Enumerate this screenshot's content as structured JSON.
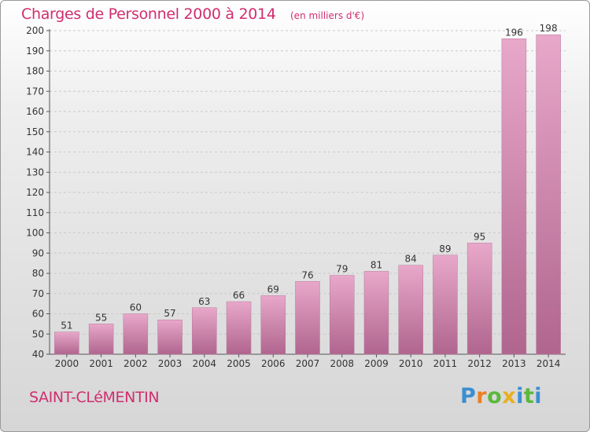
{
  "header": {
    "title": "Charges de Personnel 2000 à 2014",
    "subtitle": "(en milliers d'€)"
  },
  "footer": {
    "commune": "SAINT-CLéMENTIN",
    "logo_letters": [
      {
        "ch": "P",
        "color": "#3a8fd0"
      },
      {
        "ch": "r",
        "color": "#f07d1e"
      },
      {
        "ch": "o",
        "color": "#5bb83c"
      },
      {
        "ch": "x",
        "color": "#e8b020"
      },
      {
        "ch": "i",
        "color": "#3a8fd0"
      },
      {
        "ch": "t",
        "color": "#5bb83c"
      },
      {
        "ch": "i",
        "color": "#3a8fd0"
      }
    ]
  },
  "colors": {
    "accent": "#d12e6e",
    "bar_light": "#e8a8ca",
    "bar_dark": "#b0658e",
    "grid": "#c9c9c9",
    "axis": "#555555"
  },
  "chart_data": {
    "type": "bar",
    "title": "Charges de Personnel 2000 à 2014",
    "subtitle": "(en milliers d'€)",
    "categories": [
      "2000",
      "2001",
      "2002",
      "2003",
      "2004",
      "2005",
      "2006",
      "2007",
      "2008",
      "2009",
      "2010",
      "2011",
      "2012",
      "2013",
      "2014"
    ],
    "values": [
      51,
      55,
      60,
      57,
      63,
      66,
      69,
      76,
      79,
      81,
      84,
      89,
      95,
      196,
      198
    ],
    "ylim": [
      40,
      200
    ],
    "yticks": [
      40,
      50,
      60,
      70,
      80,
      90,
      100,
      110,
      120,
      130,
      140,
      150,
      160,
      170,
      180,
      190,
      200
    ],
    "grid": true,
    "data_labels": true
  }
}
